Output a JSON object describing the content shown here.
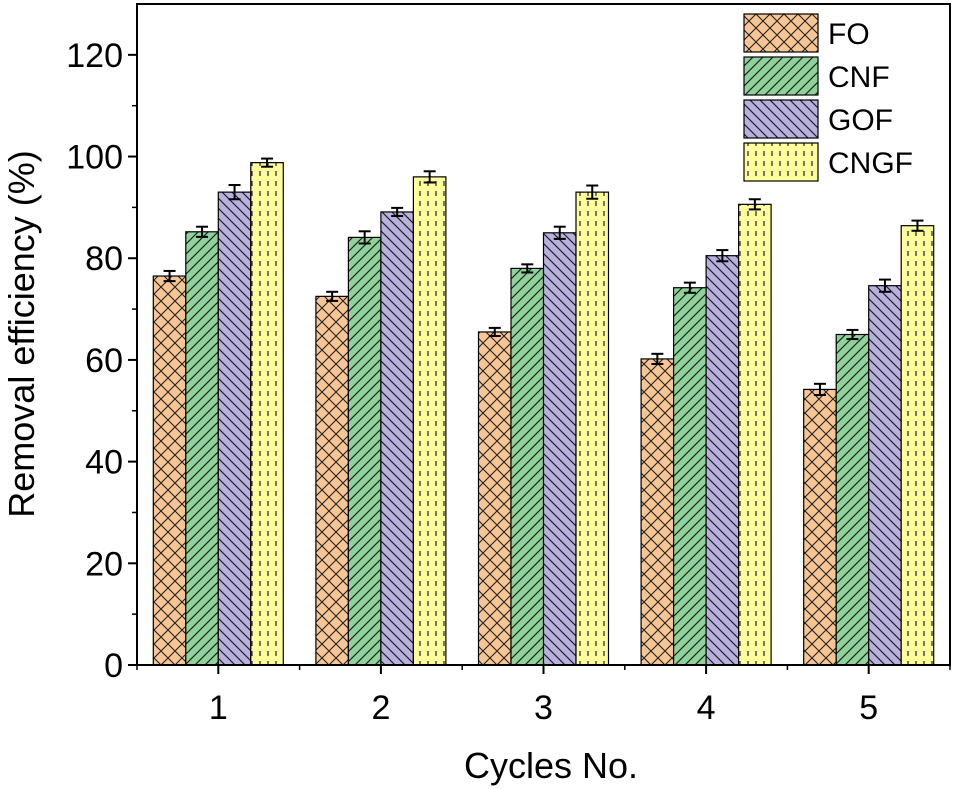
{
  "chart_data": {
    "type": "bar",
    "xlabel": "Cycles No.",
    "ylabel": "Removal efficiency (%)",
    "categories": [
      "1",
      "2",
      "3",
      "4",
      "5"
    ],
    "ylim": [
      0,
      130
    ],
    "yticks": [
      0,
      20,
      40,
      60,
      80,
      100,
      120
    ],
    "grid": false,
    "legend_position": "top-right",
    "series": [
      {
        "name": "FO",
        "values": [
          76.5,
          72.5,
          65.5,
          60.2,
          54.2
        ],
        "errors": [
          1.0,
          0.9,
          0.8,
          1.0,
          1.1
        ],
        "color": "#f8c594",
        "pattern": "crosshatch"
      },
      {
        "name": "CNF",
        "values": [
          85.2,
          84.1,
          78.0,
          74.2,
          65.0
        ],
        "errors": [
          1.0,
          1.2,
          0.8,
          1.0,
          0.9
        ],
        "color": "#8ed49a",
        "pattern": "forward-diagonal"
      },
      {
        "name": "GOF",
        "values": [
          93.0,
          89.1,
          85.0,
          80.5,
          74.6
        ],
        "errors": [
          1.4,
          0.8,
          1.2,
          1.1,
          1.2
        ],
        "color": "#b8b0df",
        "pattern": "back-diagonal"
      },
      {
        "name": "CNGF",
        "values": [
          98.8,
          96.0,
          93.0,
          90.6,
          86.4
        ],
        "errors": [
          0.8,
          1.1,
          1.3,
          1.0,
          1.0
        ],
        "color": "#fefe9d",
        "pattern": "dashed-vertical"
      }
    ]
  }
}
